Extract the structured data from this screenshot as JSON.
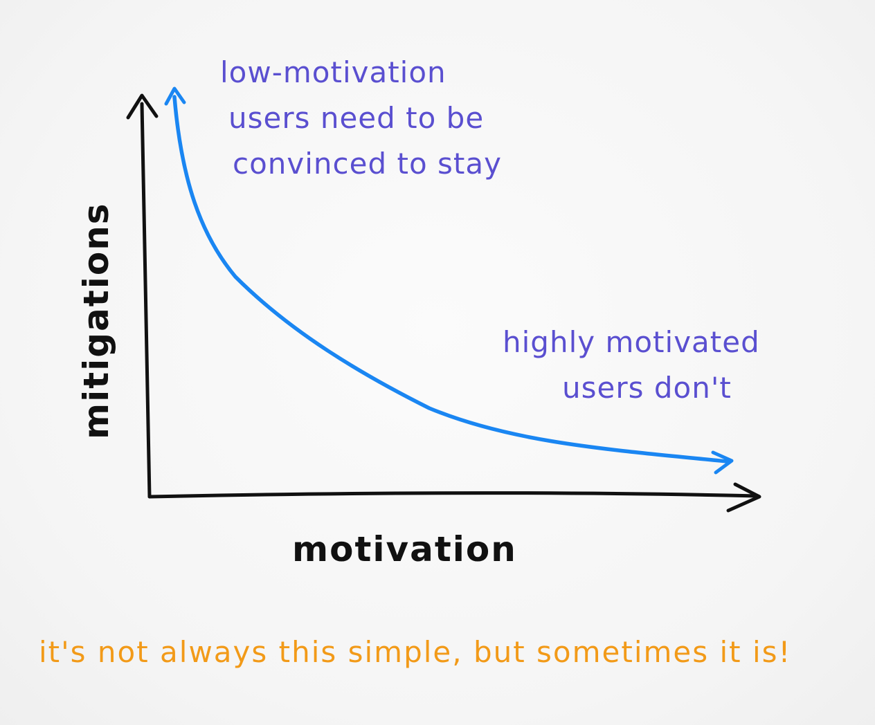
{
  "diagram": {
    "x_axis_label": "motivation",
    "y_axis_label": "mitigations",
    "annotation_top": {
      "lines": [
        "low-motivation",
        "users need to be",
        "convinced to stay"
      ]
    },
    "annotation_right": {
      "lines": [
        "highly motivated",
        "users don't"
      ]
    },
    "footer": "it's not always this simple, but sometimes it is!",
    "colors": {
      "axes": "#111111",
      "curve": "#1a86f2",
      "annotation": "#5a4fd0",
      "footer": "#f29a18",
      "background": "#f7f7f7"
    }
  }
}
